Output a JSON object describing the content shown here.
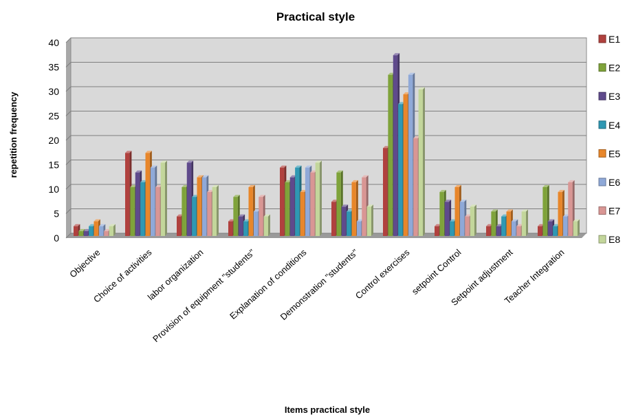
{
  "chart_data": {
    "type": "bar",
    "title": "Practical style",
    "xlabel": "Items practical style",
    "ylabel": "repetition  frequency",
    "ylim": [
      0,
      40
    ],
    "yticks": [
      0,
      5,
      10,
      15,
      20,
      25,
      30,
      35,
      40
    ],
    "grid": true,
    "legend_position": "right",
    "categories": [
      "Objective",
      "Choice of activities",
      "labor organization",
      "Provision of equipment \"students\"",
      "Explanation of conditions",
      "Demonstration \"students\"",
      "Control exercises",
      "setpoint Control",
      "Setpoint adjustment",
      "Teacher Integration"
    ],
    "series": [
      {
        "name": "E1",
        "color": "#b0413e",
        "values": [
          2,
          17,
          4,
          3,
          14,
          7,
          18,
          2,
          2,
          2
        ]
      },
      {
        "name": "E2",
        "color": "#7fa33a",
        "values": [
          1,
          10,
          10,
          8,
          11,
          13,
          33,
          9,
          5,
          10
        ]
      },
      {
        "name": "E3",
        "color": "#5f4a8c",
        "values": [
          1,
          13,
          15,
          4,
          12,
          6,
          37,
          7,
          2,
          3
        ]
      },
      {
        "name": "E4",
        "color": "#2f98b3",
        "values": [
          2,
          11,
          8,
          3,
          14,
          5,
          27,
          3,
          4,
          2
        ]
      },
      {
        "name": "E5",
        "color": "#e8862a",
        "values": [
          3,
          17,
          12,
          10,
          9,
          11,
          29,
          10,
          5,
          9
        ]
      },
      {
        "name": "E6",
        "color": "#8fa9d8",
        "values": [
          2,
          14,
          12,
          5,
          14,
          3,
          33,
          7,
          3,
          4
        ]
      },
      {
        "name": "E7",
        "color": "#d99694",
        "values": [
          1,
          10,
          9,
          8,
          13,
          12,
          20,
          4,
          2,
          11
        ]
      },
      {
        "name": "E8",
        "color": "#c3d69b",
        "values": [
          2,
          15,
          10,
          4,
          15,
          6,
          30,
          6,
          5,
          3
        ]
      }
    ]
  }
}
